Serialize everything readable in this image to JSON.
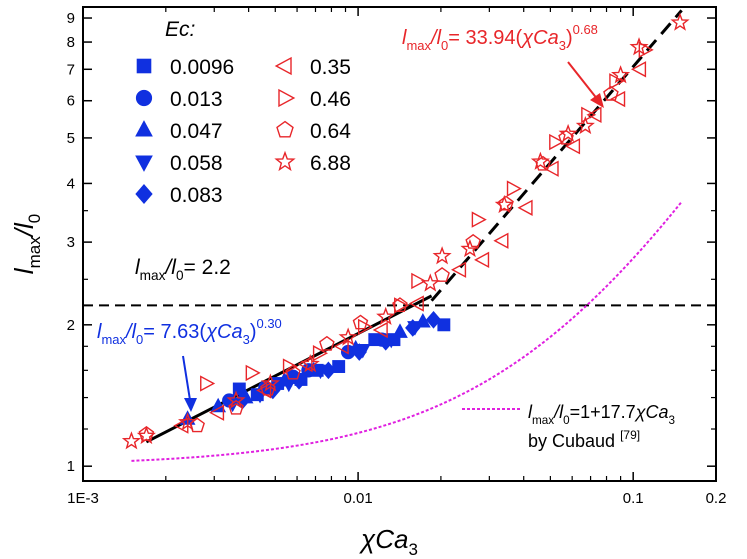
{
  "chart_data": {
    "type": "scatter",
    "title": "",
    "xlabel": {
      "pre": "χ",
      "main": "Ca",
      "sub": "3"
    },
    "ylabel": {
      "main": "l",
      "sub": "max",
      "mid": "/l",
      "sub2": "0"
    },
    "x_scale": "log",
    "y_scale": "log",
    "xlim": [
      0.001,
      0.2
    ],
    "ylim": [
      0.93,
      9.5
    ],
    "x_ticks": [
      {
        "v": 0.001,
        "label": "1E-3"
      },
      {
        "v": 0.01,
        "label": "0.01"
      },
      {
        "v": 0.1,
        "label": "0.1"
      },
      {
        "v": 0.2,
        "label": "0.2"
      }
    ],
    "y_ticks": [
      {
        "v": 1,
        "label": "1"
      },
      {
        "v": 2,
        "label": "2"
      },
      {
        "v": 3,
        "label": "3"
      },
      {
        "v": 4,
        "label": "4"
      },
      {
        "v": 5,
        "label": "5"
      },
      {
        "v": 6,
        "label": "6"
      },
      {
        "v": 7,
        "label": "7"
      },
      {
        "v": 8,
        "label": "8"
      },
      {
        "v": 9,
        "label": "9"
      }
    ],
    "legend_title": "Ec:",
    "legend_position": "top-left",
    "colors": {
      "blue": "#1030e0",
      "red": "#e8262a",
      "magenta": "#e020e0",
      "black": "#000000"
    },
    "series": [
      {
        "name": "0.0096",
        "marker": "square",
        "filled": true,
        "color": "#1030e0",
        "points": [
          [
            0.0037,
            1.46
          ],
          [
            0.0043,
            1.42
          ],
          [
            0.0051,
            1.5
          ],
          [
            0.0062,
            1.53
          ],
          [
            0.0071,
            1.6
          ],
          [
            0.0085,
            1.63
          ],
          [
            0.0115,
            1.86
          ],
          [
            0.0135,
            1.86
          ],
          [
            0.0205,
            2.0
          ]
        ]
      },
      {
        "name": "0.013",
        "marker": "circle",
        "filled": true,
        "color": "#1030e0",
        "points": [
          [
            0.0034,
            1.38
          ],
          [
            0.0046,
            1.47
          ],
          [
            0.0058,
            1.55
          ],
          [
            0.0066,
            1.6
          ],
          [
            0.0092,
            1.75
          ],
          [
            0.0122,
            1.86
          ]
        ]
      },
      {
        "name": "0.047",
        "marker": "triangle-up",
        "filled": true,
        "color": "#1030e0",
        "points": [
          [
            0.0024,
            1.26
          ],
          [
            0.0031,
            1.34
          ],
          [
            0.0039,
            1.4
          ],
          [
            0.0054,
            1.52
          ],
          [
            0.0069,
            1.6
          ],
          [
            0.0098,
            1.78
          ],
          [
            0.0142,
            1.93
          ],
          [
            0.0172,
            2.03
          ]
        ]
      },
      {
        "name": "0.058",
        "marker": "triangle-down",
        "filled": true,
        "color": "#1030e0",
        "points": [
          [
            0.0035,
            1.36
          ],
          [
            0.0044,
            1.42
          ],
          [
            0.0056,
            1.5
          ],
          [
            0.0073,
            1.6
          ],
          [
            0.0104,
            1.77
          ],
          [
            0.0132,
            1.86
          ],
          [
            0.0161,
            1.98
          ]
        ]
      },
      {
        "name": "0.083",
        "marker": "diamond",
        "filled": true,
        "color": "#1030e0",
        "points": [
          [
            0.0038,
            1.38
          ],
          [
            0.0049,
            1.45
          ],
          [
            0.0061,
            1.52
          ],
          [
            0.0078,
            1.6
          ],
          [
            0.0101,
            1.75
          ],
          [
            0.0126,
            1.84
          ],
          [
            0.0158,
            1.97
          ],
          [
            0.0188,
            2.05
          ]
        ]
      },
      {
        "name": "0.35",
        "marker": "triangle-left",
        "filled": false,
        "color": "#e8262a",
        "points": [
          [
            0.0023,
            1.22
          ],
          [
            0.0031,
            1.3
          ],
          [
            0.0046,
            1.45
          ],
          [
            0.0065,
            1.65
          ],
          [
            0.0088,
            1.8
          ],
          [
            0.0122,
            1.95
          ],
          [
            0.0165,
            2.22
          ],
          [
            0.0235,
            2.62
          ],
          [
            0.0285,
            2.75
          ],
          [
            0.0335,
            3.02
          ],
          [
            0.041,
            3.55
          ],
          [
            0.051,
            4.3
          ],
          [
            0.061,
            4.8
          ],
          [
            0.073,
            5.6
          ],
          [
            0.089,
            6.05
          ],
          [
            0.106,
            7.0
          ]
        ]
      },
      {
        "name": "0.46",
        "marker": "triangle-right",
        "filled": false,
        "color": "#e8262a",
        "points": [
          [
            0.0028,
            1.5
          ],
          [
            0.0041,
            1.58
          ],
          [
            0.0056,
            1.63
          ],
          [
            0.0072,
            1.74
          ],
          [
            0.0105,
            1.98
          ],
          [
            0.0142,
            2.2
          ],
          [
            0.0164,
            2.48
          ],
          [
            0.0272,
            3.35
          ],
          [
            0.0365,
            3.9
          ],
          [
            0.052,
            4.9
          ],
          [
            0.068,
            5.6
          ],
          [
            0.086,
            6.6
          ],
          [
            0.11,
            7.7
          ]
        ]
      },
      {
        "name": "0.64",
        "marker": "pentagon",
        "filled": false,
        "color": "#e8262a",
        "points": [
          [
            0.0017,
            1.17
          ],
          [
            0.0026,
            1.22
          ],
          [
            0.0036,
            1.33
          ],
          [
            0.0047,
            1.46
          ],
          [
            0.0058,
            1.58
          ],
          [
            0.0077,
            1.82
          ],
          [
            0.0102,
            2.02
          ],
          [
            0.0142,
            2.2
          ],
          [
            0.0202,
            2.55
          ],
          [
            0.0262,
            3.0
          ],
          [
            0.0345,
            3.62
          ],
          [
            0.047,
            4.4
          ],
          [
            0.057,
            5.0
          ],
          [
            0.083,
            6.2
          ]
        ]
      },
      {
        "name": "6.88",
        "marker": "star",
        "filled": false,
        "color": "#e8262a",
        "points": [
          [
            0.0015,
            1.13
          ],
          [
            0.0017,
            1.16
          ],
          [
            0.0024,
            1.24
          ],
          [
            0.0036,
            1.38
          ],
          [
            0.0048,
            1.5
          ],
          [
            0.0067,
            1.65
          ],
          [
            0.0092,
            1.88
          ],
          [
            0.0126,
            2.08
          ],
          [
            0.0183,
            2.45
          ],
          [
            0.0202,
            2.8
          ],
          [
            0.0255,
            2.9
          ],
          [
            0.034,
            3.6
          ],
          [
            0.046,
            4.45
          ],
          [
            0.058,
            5.1
          ],
          [
            0.067,
            5.3
          ],
          [
            0.09,
            6.8
          ],
          [
            0.105,
            7.8
          ],
          [
            0.148,
            8.8
          ]
        ]
      }
    ],
    "lines": [
      {
        "id": "fit-low",
        "style": "solid",
        "color": "#000000",
        "x": [
          0.0017,
          0.0185
        ],
        "label": {
          "l": "l",
          "s1": "max",
          "m": "/l",
          "s2": "0",
          "eq": "= 7.63(",
          "chi": "χ",
          "ca": "Ca",
          "ca_sub": "3",
          "close": ")",
          "exp": "0.30"
        },
        "label_color": "#1030e0"
      },
      {
        "id": "fit-high",
        "style": "dashed",
        "color": "#000000",
        "x": [
          0.0185,
          0.15
        ],
        "label": {
          "l": "l",
          "s1": "max",
          "m": "/l",
          "s2": "0",
          "eq": "= 33.94(",
          "chi": "χ",
          "ca": "Ca",
          "ca_sub": "3",
          "close": ")",
          "exp": "0.68"
        },
        "label_color": "#e8262a"
      },
      {
        "id": "threshold",
        "style": "dashed",
        "color": "#000000",
        "y": 2.2,
        "label": {
          "l": "l",
          "s1": "max",
          "m": "/l",
          "s2": "0",
          "eq": "= 2.2"
        },
        "label_color": "#000000"
      },
      {
        "id": "cubaud",
        "style": "dotted",
        "color": "#e020e0",
        "x": [
          0.0015,
          0.15
        ],
        "label": {
          "l": "l",
          "s1": "max",
          "m": "/l",
          "s2": "0",
          "eq": "=1+17.7",
          "chi": "χ",
          "ca": "Ca",
          "ca_sub": "3"
        },
        "label2": {
          "pre": "by Cubaud ",
          "ref": "[79]"
        },
        "label_color": "#000000"
      }
    ]
  }
}
